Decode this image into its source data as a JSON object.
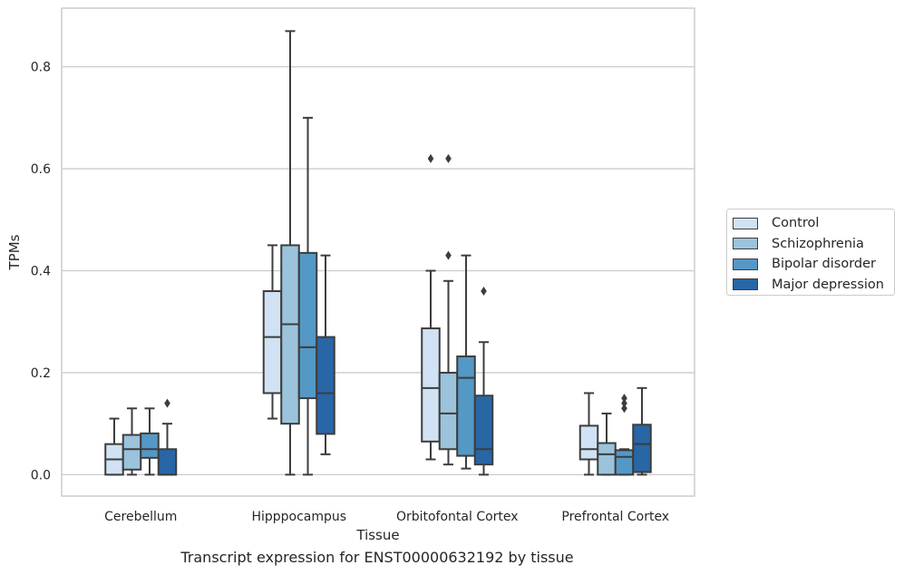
{
  "chart_data": {
    "type": "box",
    "caption": "Transcript expression for ENST00000632192 by tissue",
    "xlabel": "Tissue",
    "ylabel": "TPMs",
    "ylim": [
      -0.042,
      0.915
    ],
    "yticks": [
      "0.0",
      "0.2",
      "0.4",
      "0.6",
      "0.8"
    ],
    "grid": "horizontal",
    "legend_position": "right",
    "categories": [
      "Cerebellum",
      "Hipppocampus",
      "Orbitofontal Cortex",
      "Prefrontal Cortex"
    ],
    "series": [
      {
        "name": "Control",
        "color": "#d0e2f3",
        "boxes": [
          {
            "whislo": 0.0,
            "q1": 0.0,
            "med": 0.03,
            "q3": 0.06,
            "whishi": 0.11,
            "fliers": []
          },
          {
            "whislo": 0.11,
            "q1": 0.16,
            "med": 0.27,
            "q3": 0.36,
            "whishi": 0.45,
            "fliers": []
          },
          {
            "whislo": 0.03,
            "q1": 0.065,
            "med": 0.17,
            "q3": 0.287,
            "whishi": 0.4,
            "fliers": [
              0.62
            ]
          },
          {
            "whislo": 0.0,
            "q1": 0.03,
            "med": 0.05,
            "q3": 0.096,
            "whishi": 0.16,
            "fliers": []
          }
        ]
      },
      {
        "name": "Schizophrenia",
        "color": "#9bc3dc",
        "boxes": [
          {
            "whislo": 0.0,
            "q1": 0.01,
            "med": 0.05,
            "q3": 0.078,
            "whishi": 0.13,
            "fliers": []
          },
          {
            "whislo": 0.0,
            "q1": 0.1,
            "med": 0.295,
            "q3": 0.45,
            "whishi": 0.87,
            "fliers": []
          },
          {
            "whislo": 0.02,
            "q1": 0.05,
            "med": 0.12,
            "q3": 0.2,
            "whishi": 0.38,
            "fliers": [
              0.43,
              0.62
            ]
          },
          {
            "whislo": 0.0,
            "q1": 0.0,
            "med": 0.04,
            "q3": 0.062,
            "whishi": 0.12,
            "fliers": []
          }
        ]
      },
      {
        "name": "Bipolar disorder",
        "color": "#5498c6",
        "boxes": [
          {
            "whislo": 0.0,
            "q1": 0.033,
            "med": 0.05,
            "q3": 0.081,
            "whishi": 0.13,
            "fliers": []
          },
          {
            "whislo": 0.0,
            "q1": 0.15,
            "med": 0.25,
            "q3": 0.435,
            "whishi": 0.7,
            "fliers": []
          },
          {
            "whislo": 0.012,
            "q1": 0.037,
            "med": 0.19,
            "q3": 0.232,
            "whishi": 0.43,
            "fliers": []
          },
          {
            "whislo": 0.0,
            "q1": 0.0,
            "med": 0.035,
            "q3": 0.048,
            "whishi": 0.05,
            "fliers": [
              0.13,
              0.14,
              0.15
            ]
          }
        ]
      },
      {
        "name": "Major depression",
        "color": "#2866a6",
        "boxes": [
          {
            "whislo": 0.0,
            "q1": 0.0,
            "med": 0.0,
            "q3": 0.05,
            "whishi": 0.1,
            "fliers": [
              0.14
            ]
          },
          {
            "whislo": 0.04,
            "q1": 0.08,
            "med": 0.16,
            "q3": 0.27,
            "whishi": 0.43,
            "fliers": []
          },
          {
            "whislo": 0.0,
            "q1": 0.02,
            "med": 0.05,
            "q3": 0.155,
            "whishi": 0.26,
            "fliers": [
              0.36
            ]
          },
          {
            "whislo": 0.0,
            "q1": 0.005,
            "med": 0.06,
            "q3": 0.098,
            "whishi": 0.17,
            "fliers": []
          }
        ]
      }
    ]
  }
}
